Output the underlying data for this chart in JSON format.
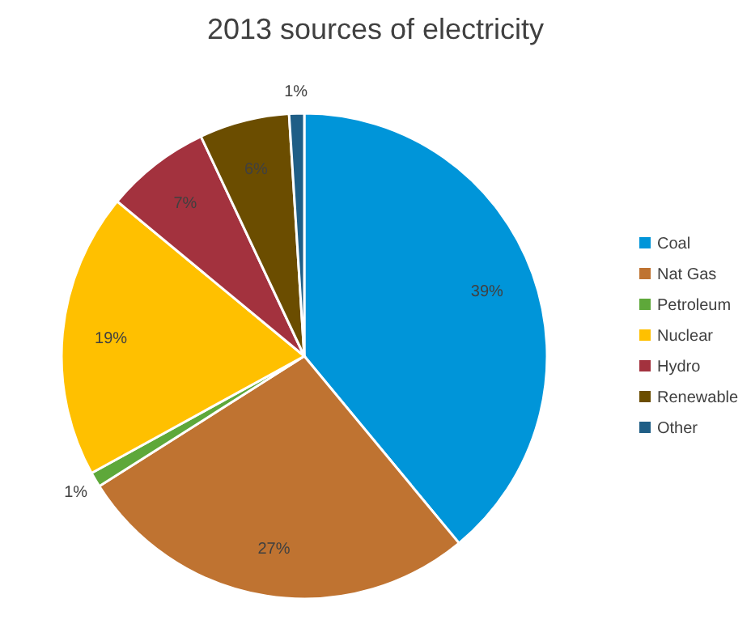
{
  "chart_data": {
    "type": "pie",
    "title": "2013 sources of electricity",
    "categories": [
      "Coal",
      "Nat Gas",
      "Petroleum",
      "Nuclear",
      "Hydro",
      "Renewable",
      "Other"
    ],
    "values": [
      39,
      27,
      1,
      19,
      7,
      6,
      1
    ],
    "value_labels": [
      "39%",
      "27%",
      "1%",
      "19%",
      "7%",
      "6%",
      "1%"
    ],
    "colors": [
      "#0095d9",
      "#bf7331",
      "#5ea83a",
      "#ffc000",
      "#a3323e",
      "#6b4d00",
      "#1f5e86"
    ],
    "legend": "right"
  }
}
